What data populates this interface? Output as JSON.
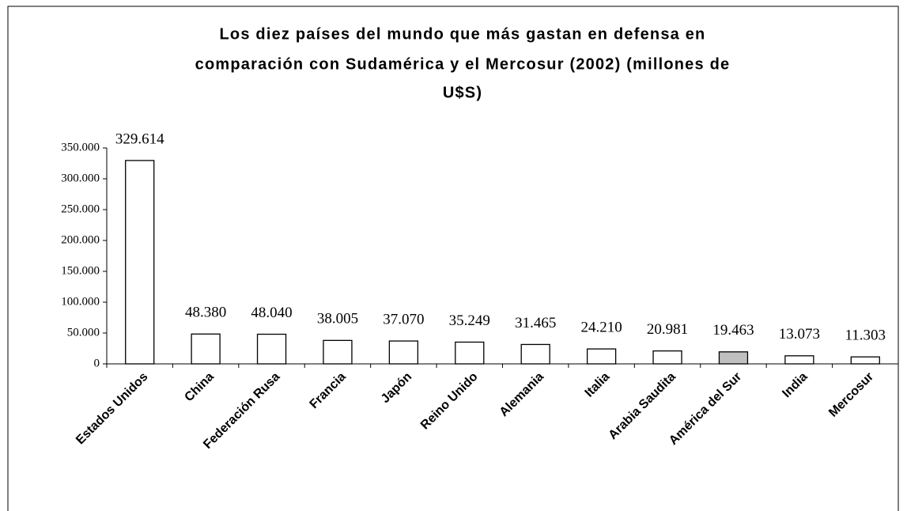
{
  "chart_data": {
    "type": "bar",
    "title": [
      "Los diez países del mundo que más gastan en defensa en",
      "comparación con Sudamérica y el Mercosur (2002) (millones de",
      "U$S)"
    ],
    "categories": [
      "Estados Unidos",
      "China",
      "Federación Rusa",
      "Francia",
      "Japón",
      "Reino Unido",
      "Alemania",
      "Italia",
      "Arabia Saudita",
      "América del Sur",
      "India",
      "Mercosur"
    ],
    "values": [
      329614,
      48380,
      48040,
      38005,
      37070,
      35249,
      31465,
      24210,
      20981,
      19463,
      13073,
      11303
    ],
    "value_labels": [
      "329.614",
      "48.380",
      "48.040",
      "38.005",
      "37.070",
      "35.249",
      "31.465",
      "24.210",
      "20.981",
      "19.463",
      "13.073",
      "11.303"
    ],
    "colors": [
      "#ffffff",
      "#ffffff",
      "#ffffff",
      "#ffffff",
      "#ffffff",
      "#ffffff",
      "#ffffff",
      "#ffffff",
      "#ffffff",
      "#c0c0c0",
      "#ffffff",
      "#ffffff"
    ],
    "ylim": [
      0,
      350000
    ],
    "yticks": [
      {
        "value": 0,
        "label": "0"
      },
      {
        "value": 50000,
        "label": "50.000"
      },
      {
        "value": 100000,
        "label": "100.000"
      },
      {
        "value": 150000,
        "label": "150.000"
      },
      {
        "value": 200000,
        "label": "200.000"
      },
      {
        "value": 250000,
        "label": "250.000"
      },
      {
        "value": 300000,
        "label": "300.000"
      },
      {
        "value": 350000,
        "label": "350.000"
      }
    ],
    "grid": false
  }
}
